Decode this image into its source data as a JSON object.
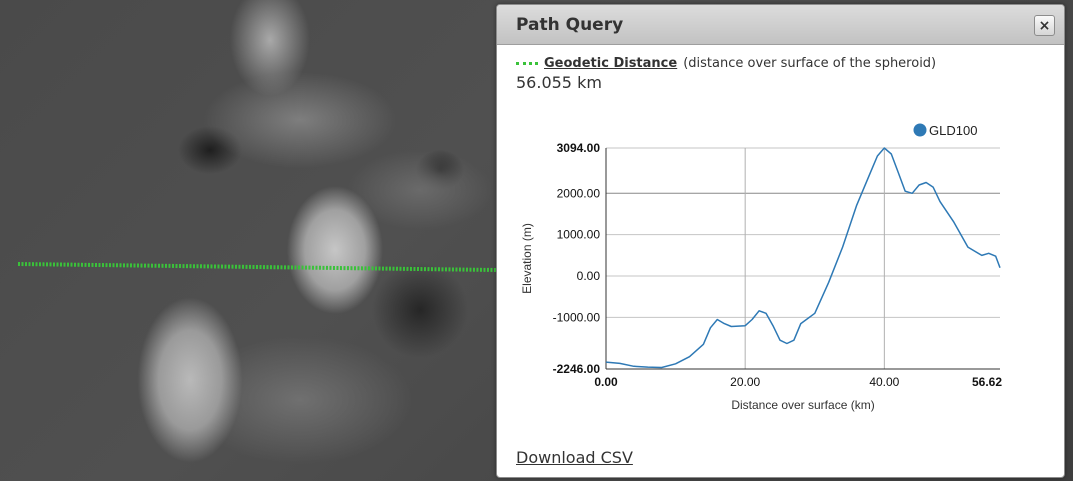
{
  "map": {
    "path_color": "#3ac23a"
  },
  "panel": {
    "title": "Path Query",
    "close_icon": "×",
    "geodetic": {
      "label": "Geodetic Distance",
      "note": "(distance over surface of the spheroid)",
      "value": "56.055 km",
      "swatch_color": "#3ac23a"
    },
    "download_label": "Download CSV"
  },
  "chart_data": {
    "type": "line",
    "xlabel": "Distance over surface (km)",
    "ylabel": "Elevation (m)",
    "xlim": [
      0,
      56.62
    ],
    "ylim": [
      -2246,
      3094
    ],
    "x_ticks": [
      "0.00",
      "20.00",
      "40.00",
      "56.62"
    ],
    "x_tick_values": [
      0,
      20,
      40,
      56.62
    ],
    "y_ticks": [
      "3094.00",
      "2000.00",
      "1000.00",
      "0.00",
      "-1000.00",
      "-2246.00"
    ],
    "y_tick_values": [
      3094,
      2000,
      1000,
      0,
      -1000,
      -2246
    ],
    "legend_position": "top-right",
    "grid": true,
    "series": [
      {
        "name": "GLD100",
        "color": "#2e79b5",
        "x": [
          0,
          2,
          4,
          6,
          8,
          10,
          12,
          14,
          15,
          16,
          17,
          18,
          20,
          21,
          22,
          23,
          24,
          25,
          26,
          27,
          28,
          30,
          32,
          34,
          36,
          38,
          39,
          40,
          41,
          42,
          43,
          44,
          45,
          46,
          47,
          48,
          50,
          52,
          54,
          55,
          56,
          56.62
        ],
        "y": [
          -2080,
          -2110,
          -2180,
          -2200,
          -2210,
          -2120,
          -1950,
          -1650,
          -1250,
          -1050,
          -1150,
          -1220,
          -1200,
          -1050,
          -840,
          -900,
          -1200,
          -1550,
          -1630,
          -1550,
          -1150,
          -900,
          -150,
          700,
          1700,
          2500,
          2900,
          3094,
          2950,
          2500,
          2050,
          2000,
          2200,
          2260,
          2150,
          1800,
          1300,
          700,
          500,
          550,
          480,
          200
        ]
      }
    ]
  }
}
